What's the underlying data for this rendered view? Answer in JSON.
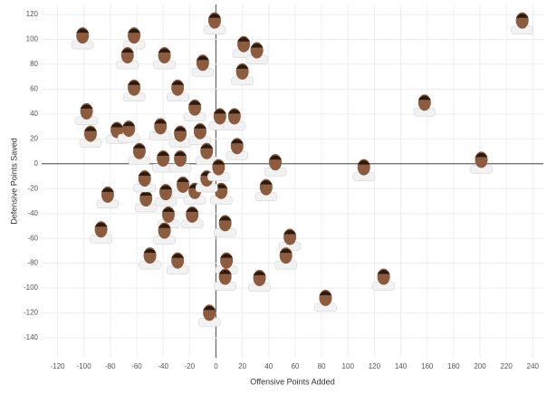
{
  "chart_data": {
    "type": "scatter",
    "x_label": "Offensive Points Added",
    "y_label": "Defensive Points Saved",
    "x": [
      -101,
      -62,
      -1,
      -67,
      -39,
      -10,
      21,
      31,
      232,
      158,
      20,
      -62,
      -29,
      -98,
      -95,
      -75,
      -66,
      -42,
      -27,
      -16,
      3,
      14,
      -12,
      -58,
      -40,
      -27,
      -7,
      16,
      45,
      112,
      201,
      -82,
      -53,
      -38,
      -25,
      -16,
      4,
      38,
      -36,
      -18,
      7,
      -87,
      -39,
      56,
      -50,
      -29,
      8,
      53,
      33,
      7,
      127,
      83,
      -5,
      -54,
      -7,
      2
    ],
    "values": [
      101,
      101,
      113,
      85,
      85,
      79,
      94,
      89,
      113,
      47,
      72,
      59,
      59,
      40,
      22,
      25,
      26,
      28,
      22,
      43,
      36,
      36,
      24,
      8,
      2,
      2,
      8,
      12,
      -1,
      -5,
      1,
      -27,
      -30,
      -25,
      -19,
      -24,
      -24,
      -21,
      -43,
      -43,
      -50,
      -55,
      -56,
      -61,
      -76,
      -80,
      -80,
      -76,
      -94,
      -93,
      -93,
      -110,
      -122,
      -14,
      -14,
      -5
    ],
    "color": "#8d5b3e",
    "xlim": [
      -132,
      248
    ],
    "ylim": [
      -156,
      128
    ],
    "xticks": [
      -120,
      -100,
      -80,
      -60,
      -40,
      -20,
      0,
      20,
      40,
      60,
      80,
      100,
      120,
      140,
      160,
      180,
      200,
      220,
      240
    ],
    "yticks": [
      -140,
      -120,
      -100,
      -80,
      -60,
      -40,
      -20,
      0,
      20,
      40,
      60,
      80,
      100,
      120
    ],
    "grid": true
  }
}
